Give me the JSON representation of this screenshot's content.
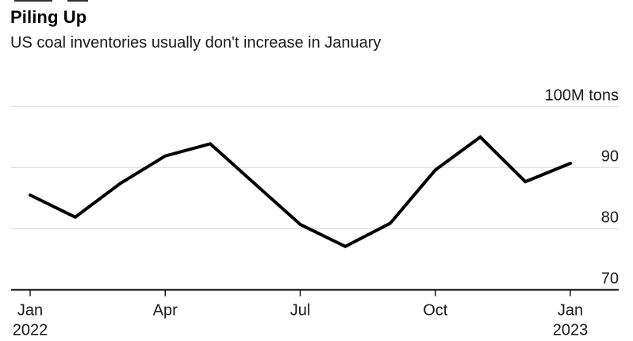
{
  "chart_data": {
    "type": "line",
    "title": "Piling Up",
    "subtitle": "US coal inventories usually don't increase in January",
    "unit": "M tons",
    "x": [
      "Jan 2022",
      "Feb 2022",
      "Mar 2022",
      "Apr 2022",
      "May 2022",
      "Jun 2022",
      "Jul 2022",
      "Aug 2022",
      "Sep 2022",
      "Oct 2022",
      "Nov 2022",
      "Dec 2022",
      "Jan 2023"
    ],
    "series": [
      {
        "name": "US coal inventories",
        "values": [
          85.5,
          81.9,
          87.4,
          91.9,
          93.9,
          87.3,
          80.7,
          77.1,
          80.9,
          89.6,
          95.0,
          87.7,
          90.7
        ]
      }
    ],
    "ylim": [
      70,
      100
    ],
    "grid": "horizontal",
    "legend": "none",
    "y_axis": {
      "side": "right",
      "gridlines": [
        100,
        90,
        80
      ],
      "baseline_value": 70,
      "labels": [
        {
          "value": 100,
          "text": "100M tons"
        },
        {
          "value": 90,
          "text": "90"
        },
        {
          "value": 80,
          "text": "80"
        },
        {
          "value": 70,
          "text": "70"
        }
      ]
    },
    "x_axis": {
      "ticks": [
        {
          "index": 0,
          "lines": [
            "Jan",
            "2022"
          ]
        },
        {
          "index": 3,
          "lines": [
            "Apr"
          ]
        },
        {
          "index": 6,
          "lines": [
            "Jul"
          ]
        },
        {
          "index": 9,
          "lines": [
            "Oct"
          ]
        },
        {
          "index": 12,
          "lines": [
            "Jan",
            "2023"
          ]
        }
      ]
    },
    "colors": {
      "line": "#000000",
      "gridline": "#d9d9d9",
      "axis": "#000000",
      "tick": "#1a1a1a",
      "label": "#1a1a1a",
      "title": "#000000",
      "subtitle": "#1a1a1a",
      "background": "#ffffff"
    }
  }
}
